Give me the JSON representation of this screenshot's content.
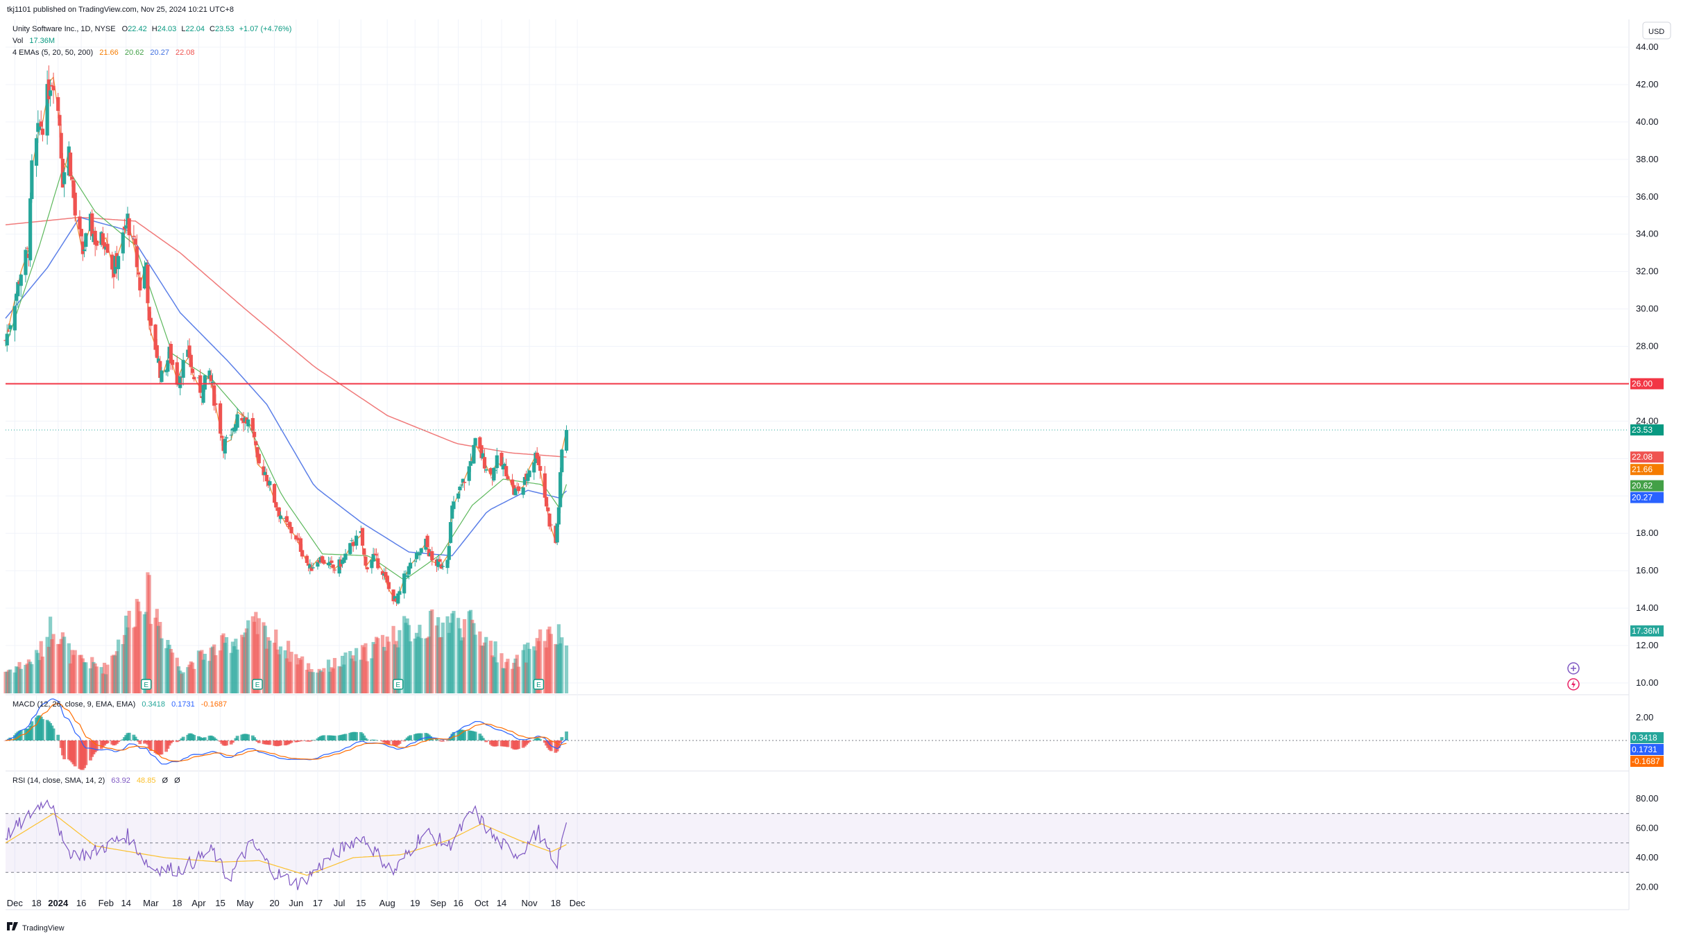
{
  "header": {
    "published": "tkj1101 published on TradingView.com, Nov 25, 2024 10:21 UTC+8",
    "symbol": "Unity Software Inc., 1D, NYSE",
    "o_label": "O",
    "o_value": "22.42",
    "h_label": "H",
    "h_value": "24.03",
    "l_label": "L",
    "l_value": "22.04",
    "c_label": "C",
    "c_value": "23.53",
    "change": "+1.07 (+4.76%)",
    "vol_label": "Vol",
    "vol_value": "17.36M",
    "ema_label": "4 EMAs (5, 20, 50, 200)",
    "ema5": "21.66",
    "ema20": "20.62",
    "ema50": "20.27",
    "ema200": "22.08"
  },
  "currency_button": "USD",
  "macd_label": "MACD (12, 26, close, 9, EMA, EMA)",
  "macd_values": {
    "hist": "0.3418",
    "macd": "0.1731",
    "signal": "-0.1687"
  },
  "rsi_label": "RSI (14, close, SMA, 14, 2)",
  "rsi_values": {
    "rsi": "63.92",
    "ma": "48.85",
    "x1": "Ø",
    "x2": "Ø"
  },
  "footer_logo": "TradingView",
  "colors": {
    "up": "#26a69a",
    "down": "#ef5350",
    "ema5": "#f57c00",
    "ema20": "#43a047",
    "ema50": "#3f6fe0",
    "ema200": "#ef5350",
    "hline": "#f23645",
    "rsi": "#7e57c2",
    "rsi_ma": "#fbc02d"
  },
  "chart_data": {
    "type": "candlestick",
    "title": "Unity Software Inc., 1D, NYSE",
    "price_axis_ticks": [
      "44.00",
      "42.00",
      "40.00",
      "38.00",
      "36.00",
      "34.00",
      "32.00",
      "30.00",
      "28.00",
      "26.00",
      "24.00",
      "22.00",
      "20.00",
      "18.00",
      "16.00",
      "14.00",
      "12.00",
      "10.00"
    ],
    "price_range": [
      9.6,
      45.2
    ],
    "time_axis_ticks": [
      "Dec",
      "18",
      "2024",
      "16",
      "Feb",
      "14",
      "Mar",
      "18",
      "Apr",
      "15",
      "May",
      "20",
      "Jun",
      "17",
      "Jul",
      "15",
      "Aug",
      "19",
      "Sep",
      "16",
      "Oct",
      "14",
      "Nov",
      "18",
      "Dec"
    ],
    "horizontal_line": {
      "value": 26.0,
      "label": "26.00"
    },
    "price_labels": {
      "last": "23.53",
      "ema200": "22.08",
      "ema5": "21.66",
      "ema20": "20.62",
      "ema50": "20.27",
      "volume": "17.36M"
    },
    "close_path": [
      [
        "2023-11-28",
        28.3
      ],
      [
        "2023-12-04",
        30.5
      ],
      [
        "2023-12-08",
        32.0
      ],
      [
        "2023-12-13",
        33.2
      ],
      [
        "2023-12-15",
        37.5
      ],
      [
        "2023-12-18",
        38.8
      ],
      [
        "2023-12-20",
        39.8
      ],
      [
        "2023-12-22",
        40.0
      ],
      [
        "2023-12-27",
        42.2
      ],
      [
        "2023-12-29",
        42.4
      ],
      [
        "2024-01-02",
        40.0
      ],
      [
        "2024-01-04",
        37.0
      ],
      [
        "2024-01-08",
        38.5
      ],
      [
        "2024-01-10",
        36.8
      ],
      [
        "2024-01-12",
        35.0
      ],
      [
        "2024-01-17",
        33.0
      ],
      [
        "2024-01-22",
        34.5
      ],
      [
        "2024-01-26",
        33.5
      ],
      [
        "2024-02-01",
        33.8
      ],
      [
        "2024-02-06",
        32.0
      ],
      [
        "2024-02-09",
        33.0
      ],
      [
        "2024-02-13",
        34.0
      ],
      [
        "2024-02-15",
        34.8
      ],
      [
        "2024-02-20",
        33.0
      ],
      [
        "2024-02-23",
        31.2
      ],
      [
        "2024-02-27",
        32.5
      ],
      [
        "2024-02-29",
        29.0
      ],
      [
        "2024-03-04",
        28.0
      ],
      [
        "2024-03-08",
        26.3
      ],
      [
        "2024-03-13",
        27.6
      ],
      [
        "2024-03-18",
        26.2
      ],
      [
        "2024-03-22",
        27.0
      ],
      [
        "2024-03-26",
        27.5
      ],
      [
        "2024-03-28",
        26.5
      ],
      [
        "2024-04-03",
        25.6
      ],
      [
        "2024-04-08",
        26.6
      ],
      [
        "2024-04-12",
        24.8
      ],
      [
        "2024-04-17",
        22.8
      ],
      [
        "2024-04-22",
        23.0
      ],
      [
        "2024-04-26",
        24.5
      ],
      [
        "2024-05-01",
        24.2
      ],
      [
        "2024-05-06",
        23.6
      ],
      [
        "2024-05-09",
        21.7
      ],
      [
        "2024-05-14",
        21.3
      ],
      [
        "2024-05-17",
        20.5
      ],
      [
        "2024-05-22",
        19.3
      ],
      [
        "2024-05-28",
        18.4
      ],
      [
        "2024-06-03",
        17.8
      ],
      [
        "2024-06-07",
        17.0
      ],
      [
        "2024-06-12",
        16.1
      ],
      [
        "2024-06-18",
        16.7
      ],
      [
        "2024-06-24",
        16.3
      ],
      [
        "2024-06-28",
        16.1
      ],
      [
        "2024-07-03",
        16.5
      ],
      [
        "2024-07-09",
        17.4
      ],
      [
        "2024-07-15",
        17.9
      ],
      [
        "2024-07-18",
        16.2
      ],
      [
        "2024-07-23",
        16.8
      ],
      [
        "2024-07-29",
        16.0
      ],
      [
        "2024-08-02",
        15.0
      ],
      [
        "2024-08-07",
        14.3
      ],
      [
        "2024-08-12",
        15.6
      ],
      [
        "2024-08-16",
        16.3
      ],
      [
        "2024-08-21",
        16.8
      ],
      [
        "2024-08-26",
        17.5
      ],
      [
        "2024-08-30",
        16.5
      ],
      [
        "2024-09-05",
        16.3
      ],
      [
        "2024-09-09",
        16.8
      ],
      [
        "2024-09-12",
        19.3
      ],
      [
        "2024-09-18",
        20.5
      ],
      [
        "2024-09-23",
        21.5
      ],
      [
        "2024-09-27",
        22.8
      ],
      [
        "2024-10-02",
        22.0
      ],
      [
        "2024-10-07",
        21.1
      ],
      [
        "2024-10-11",
        21.8
      ],
      [
        "2024-10-17",
        21.4
      ],
      [
        "2024-10-22",
        20.2
      ],
      [
        "2024-10-28",
        20.5
      ],
      [
        "2024-11-01",
        21.5
      ],
      [
        "2024-11-06",
        22.3
      ],
      [
        "2024-11-11",
        20.0
      ],
      [
        "2024-11-14",
        18.6
      ],
      [
        "2024-11-18",
        17.5
      ],
      [
        "2024-11-20",
        19.5
      ],
      [
        "2024-11-22",
        22.4
      ],
      [
        "2024-11-25",
        23.53
      ]
    ],
    "ema200_path": [
      [
        "2023-11-28",
        34.5
      ],
      [
        "2024-01-15",
        34.9
      ],
      [
        "2024-02-20",
        34.7
      ],
      [
        "2024-03-20",
        33.0
      ],
      [
        "2024-05-01",
        30.0
      ],
      [
        "2024-06-15",
        26.9
      ],
      [
        "2024-08-01",
        24.3
      ],
      [
        "2024-09-15",
        22.8
      ],
      [
        "2024-10-20",
        22.3
      ],
      [
        "2024-11-25",
        22.08
      ]
    ],
    "ema50_path": [
      [
        "2023-11-28",
        29.5
      ],
      [
        "2023-12-25",
        32.2
      ],
      [
        "2024-01-15",
        34.9
      ],
      [
        "2024-02-15",
        34.2
      ],
      [
        "2024-03-20",
        29.8
      ],
      [
        "2024-04-20",
        27.2
      ],
      [
        "2024-05-15",
        24.9
      ],
      [
        "2024-06-15",
        20.5
      ],
      [
        "2024-07-15",
        18.6
      ],
      [
        "2024-08-15",
        17.0
      ],
      [
        "2024-09-12",
        16.8
      ],
      [
        "2024-10-05",
        19.2
      ],
      [
        "2024-10-31",
        20.3
      ],
      [
        "2024-11-20",
        19.9
      ],
      [
        "2024-11-25",
        20.27
      ]
    ],
    "ema20_path": [
      [
        "2023-11-28",
        28.0
      ],
      [
        "2023-12-20",
        33.4
      ],
      [
        "2024-01-05",
        37.8
      ],
      [
        "2024-01-25",
        35.2
      ],
      [
        "2024-02-20",
        33.4
      ],
      [
        "2024-03-15",
        27.6
      ],
      [
        "2024-04-10",
        26.2
      ],
      [
        "2024-05-01",
        24.2
      ],
      [
        "2024-05-25",
        20.0
      ],
      [
        "2024-06-20",
        16.9
      ],
      [
        "2024-07-20",
        16.8
      ],
      [
        "2024-08-12",
        15.5
      ],
      [
        "2024-09-05",
        16.9
      ],
      [
        "2024-09-25",
        19.5
      ],
      [
        "2024-10-15",
        20.9
      ],
      [
        "2024-11-10",
        20.6
      ],
      [
        "2024-11-20",
        19.4
      ],
      [
        "2024-11-25",
        20.62
      ]
    ],
    "volume_path_millions": [
      [
        "2023-11-28",
        8
      ],
      [
        "2023-12-12",
        11
      ],
      [
        "2023-12-20",
        14
      ],
      [
        "2023-12-29",
        26
      ],
      [
        "2024-01-10",
        13
      ],
      [
        "2024-02-01",
        9
      ],
      [
        "2024-02-26",
        38
      ],
      [
        "2024-03-20",
        9
      ],
      [
        "2024-05-09",
        24
      ],
      [
        "2024-06-15",
        8
      ],
      [
        "2024-07-15",
        14
      ],
      [
        "2024-08-08",
        22
      ],
      [
        "2024-09-12",
        26
      ],
      [
        "2024-09-26",
        24
      ],
      [
        "2024-10-20",
        9
      ],
      [
        "2024-11-08",
        20
      ],
      [
        "2024-11-22",
        20
      ],
      [
        "2024-11-25",
        17.36
      ]
    ],
    "macd": {
      "axis_ticks": [
        "2.00"
      ],
      "last_values": {
        "histogram": 0.3418,
        "macd": 0.1731,
        "signal": -0.1687
      }
    },
    "rsi": {
      "axis_ticks": [
        "80.00",
        "60.00",
        "40.00",
        "20.00"
      ],
      "range": [
        15,
        90
      ],
      "upper_band": 70,
      "middle_band": 50,
      "lower_band": 30,
      "rsi_path": [
        [
          "2023-11-28",
          55
        ],
        [
          "2023-12-10",
          65
        ],
        [
          "2023-12-22",
          78
        ],
        [
          "2023-12-29",
          77
        ],
        [
          "2024-01-05",
          45
        ],
        [
          "2024-01-20",
          42
        ],
        [
          "2024-02-15",
          55
        ],
        [
          "2024-03-01",
          33
        ],
        [
          "2024-03-20",
          32
        ],
        [
          "2024-04-10",
          45
        ],
        [
          "2024-04-20",
          25
        ],
        [
          "2024-05-05",
          50
        ],
        [
          "2024-05-20",
          30
        ],
        [
          "2024-06-05",
          22
        ],
        [
          "2024-06-25",
          40
        ],
        [
          "2024-07-15",
          55
        ],
        [
          "2024-08-05",
          30
        ],
        [
          "2024-08-25",
          58
        ],
        [
          "2024-09-10",
          48
        ],
        [
          "2024-09-26",
          72
        ],
        [
          "2024-10-10",
          52
        ],
        [
          "2024-10-25",
          42
        ],
        [
          "2024-11-07",
          58
        ],
        [
          "2024-11-18",
          32
        ],
        [
          "2024-11-25",
          63.92
        ]
      ],
      "ma_path": [
        [
          "2023-11-28",
          50
        ],
        [
          "2023-12-29",
          70
        ],
        [
          "2024-01-25",
          48
        ],
        [
          "2024-03-10",
          40
        ],
        [
          "2024-04-15",
          37
        ],
        [
          "2024-05-10",
          38
        ],
        [
          "2024-06-10",
          28
        ],
        [
          "2024-07-10",
          40
        ],
        [
          "2024-08-10",
          42
        ],
        [
          "2024-09-10",
          52
        ],
        [
          "2024-10-01",
          63
        ],
        [
          "2024-10-25",
          52
        ],
        [
          "2024-11-15",
          44
        ],
        [
          "2024-11-25",
          48.85
        ]
      ]
    }
  }
}
